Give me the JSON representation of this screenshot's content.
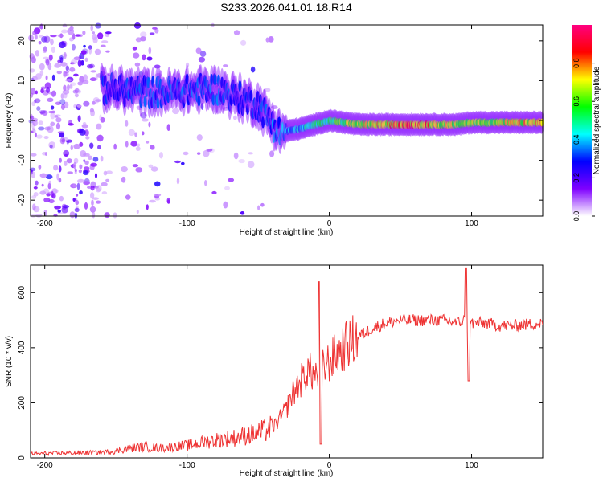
{
  "title": "S233.2026.041.01.18.R14",
  "chart_data": [
    {
      "type": "heatmap",
      "name": "spectrogram",
      "xlabel": "Height of straight line (km)",
      "ylabel": "Frequency (Hz)",
      "xlim": [
        -210,
        150
      ],
      "ylim": [
        -24,
        24
      ],
      "xticks": [
        -200,
        -100,
        0,
        100
      ],
      "yticks": [
        -20,
        -10,
        0,
        10,
        20
      ],
      "colorbar": {
        "label": "Normalized spectral amplitude",
        "range": [
          0.0,
          1.0
        ],
        "ticks": [
          0.0,
          0.2,
          0.4,
          0.6,
          0.8
        ],
        "tick_labels": [
          "0.0",
          "0.2",
          "0.4",
          "0.6",
          "0.8"
        ],
        "colormap": [
          "#ffffff",
          "#7f00ff",
          "#0000ff",
          "#00ffff",
          "#00ff00",
          "#ffff00",
          "#ff0000",
          "#ff0080"
        ]
      },
      "ridge": {
        "description_points_x": [
          -160,
          -120,
          -80,
          -50,
          -35,
          -20,
          0,
          20,
          60,
          90,
          100,
          150
        ],
        "description_points_y": [
          8,
          7,
          8,
          4,
          -3,
          -2,
          0,
          -1,
          -1,
          -1,
          -0.5,
          -0.5
        ],
        "peak_amplitude": [
          0.3,
          0.35,
          0.35,
          0.3,
          0.4,
          0.45,
          0.6,
          0.75,
          0.9,
          0.7,
          0.7,
          0.8
        ]
      }
    },
    {
      "type": "line",
      "name": "snr",
      "xlabel": "Height of straight line (km)",
      "ylabel": "SNR (10 * v/v)",
      "xlim": [
        -210,
        150
      ],
      "ylim": [
        0,
        700
      ],
      "xticks": [
        -200,
        -100,
        0,
        100
      ],
      "yticks": [
        0,
        200,
        400,
        600
      ],
      "color": "#ee3333",
      "series": [
        {
          "name": "SNR",
          "x": [
            -210,
            -180,
            -160,
            -150,
            -140,
            -130,
            -120,
            -110,
            -100,
            -90,
            -80,
            -70,
            -60,
            -50,
            -40,
            -35,
            -30,
            -25,
            -20,
            -15,
            -10,
            -5,
            0,
            10,
            20,
            30,
            40,
            50,
            60,
            70,
            80,
            90,
            95,
            97,
            100,
            110,
            120,
            130,
            140,
            150
          ],
          "values": [
            15,
            18,
            20,
            25,
            35,
            40,
            35,
            40,
            45,
            55,
            65,
            70,
            80,
            90,
            110,
            140,
            180,
            240,
            280,
            320,
            300,
            320,
            350,
            400,
            440,
            470,
            490,
            500,
            500,
            500,
            500,
            490,
            500,
            480,
            490,
            490,
            480,
            480,
            485,
            490
          ],
          "spikes": [
            {
              "x": -7,
              "value": 640
            },
            {
              "x": -6,
              "value": 50
            },
            {
              "x": 96,
              "value": 690
            },
            {
              "x": 98,
              "value": 280
            }
          ]
        }
      ]
    }
  ]
}
